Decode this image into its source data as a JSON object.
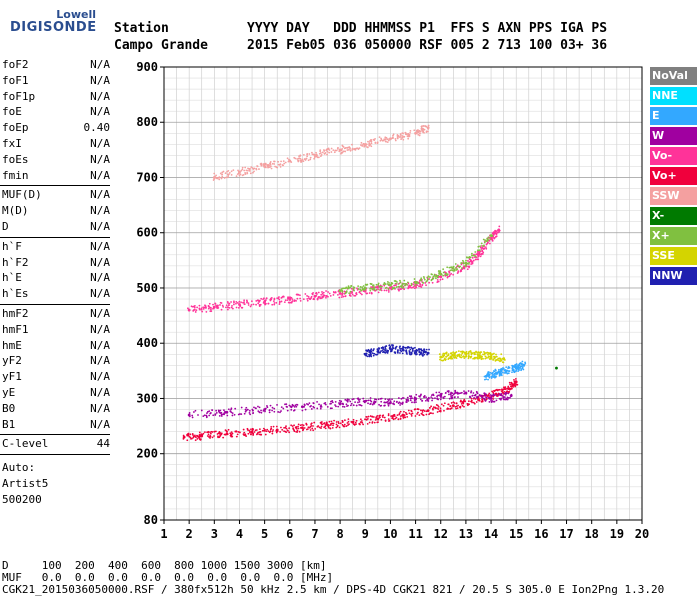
{
  "logo": {
    "line1": "Lowell",
    "line2": "DIGISONDE"
  },
  "header": {
    "line1": "Station          YYYY DAY   DDD HHMMSS P1  FFS S AXN PPS IGA PS",
    "line2": "Campo Grande     2015 Feb05 036 050000 RSF 005 2 713 100 03+ 36"
  },
  "params": {
    "group1": [
      [
        "foF2",
        "N/A"
      ],
      [
        "foF1",
        "N/A"
      ],
      [
        "foF1p",
        "N/A"
      ],
      [
        "foE",
        "N/A"
      ],
      [
        "foEp",
        "0.40"
      ],
      [
        "fxI",
        "N/A"
      ],
      [
        "foEs",
        "N/A"
      ],
      [
        "fmin",
        "N/A"
      ]
    ],
    "group2": [
      [
        "MUF(D)",
        "N/A"
      ],
      [
        "M(D)",
        "N/A"
      ],
      [
        "D",
        "N/A"
      ]
    ],
    "group3": [
      [
        "h`F",
        "N/A"
      ],
      [
        "h`F2",
        "N/A"
      ],
      [
        "h`E",
        "N/A"
      ],
      [
        "h`Es",
        "N/A"
      ]
    ],
    "group4": [
      [
        "hmF2",
        "N/A"
      ],
      [
        "hmF1",
        "N/A"
      ],
      [
        "hmE",
        "N/A"
      ],
      [
        "yF2",
        "N/A"
      ],
      [
        "yF1",
        "N/A"
      ],
      [
        "yE",
        "N/A"
      ],
      [
        "B0",
        "N/A"
      ],
      [
        "B1",
        "N/A"
      ]
    ],
    "clevel": [
      "C-level",
      "44"
    ],
    "auto": [
      "Auto:",
      "Artist5",
      "500200"
    ]
  },
  "legend": [
    {
      "label": "NoVal",
      "color": "#808080"
    },
    {
      "label": "NNE",
      "color": "#00e0ff"
    },
    {
      "label": "E",
      "color": "#33a8ff"
    },
    {
      "label": "W",
      "color": "#a000a0"
    },
    {
      "label": "Vo-",
      "color": "#ff3399"
    },
    {
      "label": "Vo+",
      "color": "#f0003c"
    },
    {
      "label": "SSW",
      "color": "#f4a0a0"
    },
    {
      "label": "X-",
      "color": "#007a00"
    },
    {
      "label": "X+",
      "color": "#80c040"
    },
    {
      "label": "SSE",
      "color": "#d4d400"
    },
    {
      "label": "NNW",
      "color": "#2020b0"
    }
  ],
  "footer": {
    "d_row": "D     100  200  400  600  800 1000 1500 3000 [km]",
    "muf_row": "MUF   0.0  0.0  0.0  0.0  0.0  0.0  0.0  0.0 [MHz]",
    "file_row": "CGK21_2015036050000.RSF / 380fx512h 50 kHz 2.5 km / DPS-4D CGK21 821 / 20.5 S 305.0 E Ion2Png 1.3.20"
  },
  "chart_data": {
    "type": "scatter",
    "xlim": [
      1,
      20
    ],
    "ylim": [
      80,
      900
    ],
    "x_ticks": [
      1,
      2,
      3,
      4,
      5,
      6,
      7,
      8,
      9,
      10,
      11,
      12,
      13,
      14,
      15,
      16,
      17,
      18,
      19,
      20
    ],
    "y_ticks": [
      80,
      200,
      300,
      400,
      500,
      600,
      700,
      800,
      900
    ],
    "grid": true,
    "legend_placement": "right",
    "traces": [
      {
        "series": "Vo+",
        "color": "#f0003c",
        "points": [
          [
            1.8,
            230
          ],
          [
            2.5,
            232
          ],
          [
            3.5,
            236
          ],
          [
            4.5,
            239
          ],
          [
            5.5,
            243
          ],
          [
            6.5,
            247
          ],
          [
            7.5,
            252
          ],
          [
            8.5,
            257
          ],
          [
            9.5,
            263
          ],
          [
            10.5,
            270
          ],
          [
            11.5,
            278
          ],
          [
            12.5,
            287
          ],
          [
            13.5,
            298
          ],
          [
            14.2,
            308
          ],
          [
            14.7,
            318
          ],
          [
            15.0,
            330
          ]
        ]
      },
      {
        "series": "W",
        "color": "#a000a0",
        "points": [
          [
            2.0,
            270
          ],
          [
            3.5,
            275
          ],
          [
            5.0,
            280
          ],
          [
            6.5,
            285
          ],
          [
            8.0,
            290
          ],
          [
            9.0,
            295
          ],
          [
            10.0,
            292
          ],
          [
            11.0,
            300
          ],
          [
            12.0,
            305
          ],
          [
            13.0,
            310
          ],
          [
            14.0,
            300
          ],
          [
            14.8,
            305
          ]
        ]
      },
      {
        "series": "NNW",
        "color": "#2020b0",
        "points": [
          [
            9.0,
            380
          ],
          [
            9.5,
            385
          ],
          [
            10.0,
            390
          ],
          [
            10.5,
            388
          ],
          [
            11.0,
            385
          ],
          [
            11.5,
            382
          ]
        ]
      },
      {
        "series": "SSE",
        "color": "#d4d400",
        "points": [
          [
            12.0,
            375
          ],
          [
            12.5,
            378
          ],
          [
            13.0,
            380
          ],
          [
            13.5,
            378
          ],
          [
            14.0,
            376
          ],
          [
            14.5,
            372
          ]
        ]
      },
      {
        "series": "E",
        "color": "#33a8ff",
        "points": [
          [
            13.8,
            340
          ],
          [
            14.2,
            345
          ],
          [
            14.6,
            350
          ],
          [
            15.0,
            355
          ],
          [
            15.3,
            360
          ]
        ]
      },
      {
        "series": "Vo-",
        "color": "#ff3399",
        "points": [
          [
            2.0,
            460
          ],
          [
            3.0,
            465
          ],
          [
            4.0,
            470
          ],
          [
            5.0,
            475
          ],
          [
            6.0,
            480
          ],
          [
            7.0,
            485
          ],
          [
            8.0,
            490
          ],
          [
            9.0,
            495
          ],
          [
            10.0,
            500
          ],
          [
            11.0,
            505
          ],
          [
            12.0,
            520
          ],
          [
            13.0,
            540
          ],
          [
            13.5,
            560
          ],
          [
            14.0,
            590
          ],
          [
            14.3,
            605
          ]
        ]
      },
      {
        "series": "SSW",
        "color": "#f4a0a0",
        "points": [
          [
            3.0,
            700
          ],
          [
            4.0,
            710
          ],
          [
            5.0,
            720
          ],
          [
            6.0,
            730
          ],
          [
            7.0,
            740
          ],
          [
            8.0,
            750
          ],
          [
            9.0,
            760
          ],
          [
            10.0,
            770
          ],
          [
            11.0,
            780
          ],
          [
            11.5,
            790
          ]
        ]
      },
      {
        "series": "X+",
        "color": "#80c040",
        "points": [
          [
            8.0,
            495
          ],
          [
            9.0,
            500
          ],
          [
            10.0,
            505
          ],
          [
            11.0,
            510
          ],
          [
            12.0,
            525
          ],
          [
            13.0,
            545
          ],
          [
            14.0,
            595
          ]
        ]
      },
      {
        "series": "X-",
        "color": "#007a00",
        "points": [
          [
            16.6,
            355
          ]
        ]
      }
    ]
  }
}
